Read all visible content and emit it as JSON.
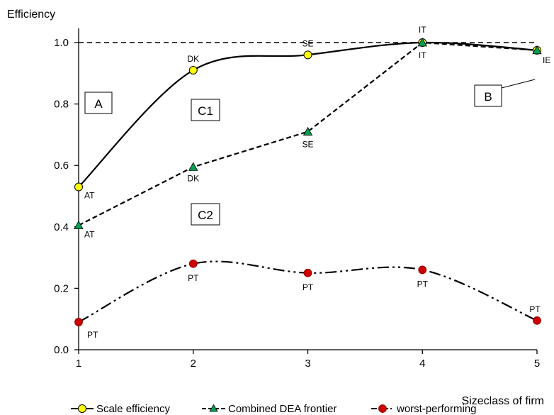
{
  "chart_data": {
    "type": "line",
    "ylabel": "Efficiency",
    "xlabel": "Sizeclass of firm",
    "x": [
      1,
      2,
      3,
      4,
      5
    ],
    "xlim": [
      1,
      5
    ],
    "ylim": [
      0,
      1.0
    ],
    "x_ticks": [
      "1",
      "2",
      "3",
      "4",
      "5"
    ],
    "y_ticks": [
      "0.0",
      "0.2",
      "0.4",
      "0.6",
      "0.8",
      "1.0"
    ],
    "reference_line": 1.0,
    "grid": false,
    "legend_position": "bottom",
    "series": [
      {
        "name": "Scale efficiency",
        "values": [
          0.53,
          0.91,
          0.96,
          1.0,
          0.975
        ],
        "point_labels": [
          "AT",
          "DK",
          "SE",
          "IT",
          "IE"
        ],
        "color": "#000000",
        "marker": "circle",
        "marker_color": "#ffff00",
        "line_style": "solid"
      },
      {
        "name": "Combined DEA frontier",
        "values": [
          0.405,
          0.595,
          0.71,
          1.0,
          0.975
        ],
        "point_labels": [
          "AT",
          "DK",
          "SE",
          "IT",
          ""
        ],
        "color": "#000000",
        "marker": "triangle",
        "marker_color": "#00a050",
        "line_style": "dashed"
      },
      {
        "name": "worst-performing",
        "values": [
          0.09,
          0.28,
          0.25,
          0.26,
          0.095
        ],
        "point_labels": [
          "PT",
          "PT",
          "PT",
          "PT",
          "PT"
        ],
        "color": "#000000",
        "marker": "circle",
        "marker_color": "#cc0000",
        "line_style": "dash-dot-dot"
      }
    ],
    "annotations": [
      "A",
      "B",
      "C1",
      "C2"
    ]
  }
}
